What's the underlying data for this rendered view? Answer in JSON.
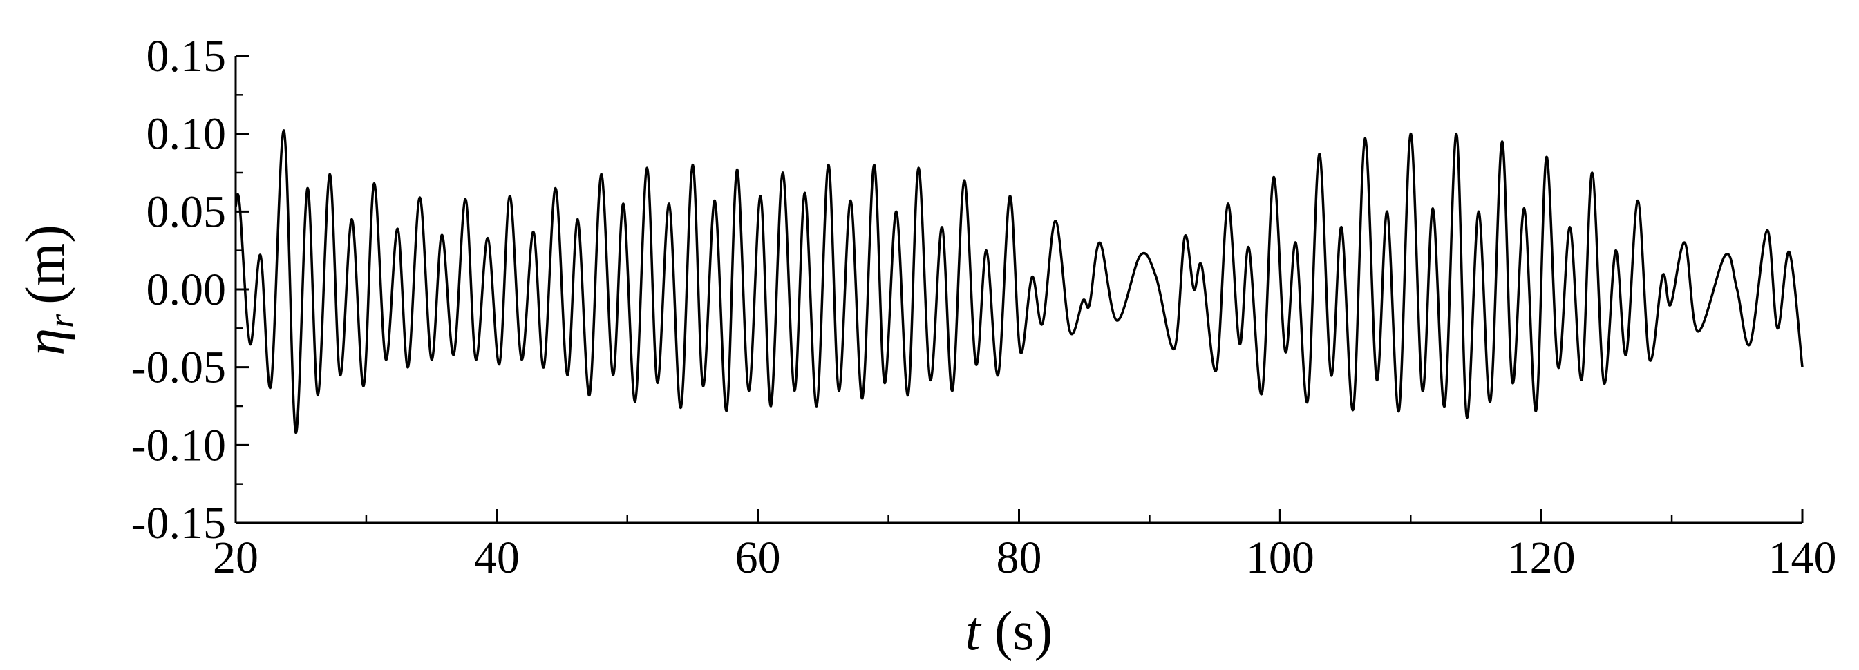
{
  "chart_data": {
    "type": "line",
    "x_label": {
      "symbol": "t",
      "unit": "(s)"
    },
    "y_label": {
      "symbol": "η",
      "subscript": "r",
      "unit": "(m)"
    },
    "xlim": [
      20,
      140
    ],
    "xticks": [
      20,
      40,
      60,
      80,
      100,
      120,
      140
    ],
    "ylim": [
      -0.15,
      0.15
    ],
    "yticks": [
      {
        "value": -0.15,
        "label": "-0.15"
      },
      {
        "value": -0.1,
        "label": "-0.10"
      },
      {
        "value": -0.05,
        "label": "-0.05"
      },
      {
        "value": 0,
        "label": "0.00"
      },
      {
        "value": 0.05,
        "label": "0.05"
      },
      {
        "value": 0.1,
        "label": "0.10"
      },
      {
        "value": 0.15,
        "label": "0.15"
      }
    ],
    "grid": false,
    "x": [
      20,
      20.3,
      21.1,
      21.9,
      22.7,
      23.7,
      24.6,
      25.5,
      26.3,
      27.2,
      28.0,
      28.9,
      29.8,
      30.6,
      31.5,
      32.4,
      33.2,
      34.1,
      35.0,
      35.8,
      36.7,
      37.6,
      38.4,
      39.3,
      40.2,
      41.0,
      41.9,
      42.8,
      43.6,
      44.5,
      45.4,
      46.2,
      47.1,
      48.0,
      48.9,
      49.7,
      50.6,
      51.5,
      52.3,
      53.2,
      54.1,
      55.0,
      55.8,
      56.7,
      57.6,
      58.4,
      59.3,
      60.2,
      61.0,
      61.9,
      62.8,
      63.6,
      64.5,
      65.4,
      66.2,
      67.1,
      68.0,
      68.9,
      69.7,
      70.6,
      71.5,
      72.3,
      73.2,
      74.1,
      74.9,
      75.8,
      76.7,
      77.5,
      78.4,
      79.3,
      80.1,
      81.0,
      81.8,
      82.8,
      83.9,
      84.9,
      85.4,
      86.2,
      87.5,
      89.3,
      90.5,
      91.9,
      92.7,
      93.4,
      94.0,
      95.1,
      96.0,
      96.9,
      97.6,
      98.6,
      99.5,
      100.4,
      101.2,
      102.1,
      103.0,
      103.9,
      104.7,
      105.6,
      106.5,
      107.4,
      108.2,
      109.1,
      110.0,
      110.9,
      111.7,
      112.6,
      113.5,
      114.3,
      115.2,
      116.1,
      117.0,
      117.8,
      118.7,
      119.6,
      120.4,
      121.3,
      122.2,
      123.1,
      123.9,
      124.8,
      125.7,
      126.5,
      127.4,
      128.3,
      129.3,
      129.9,
      131.0,
      132.0,
      134.1,
      135.0,
      136.0,
      137.3,
      138.1,
      139.0,
      140
    ],
    "series": [
      {
        "name": "eta_r",
        "color": "#000000",
        "values": [
          0.053,
          0.055,
          -0.035,
          0.022,
          -0.062,
          0.102,
          -0.092,
          0.065,
          -0.068,
          0.074,
          -0.055,
          0.045,
          -0.062,
          0.068,
          -0.045,
          0.039,
          -0.05,
          0.059,
          -0.045,
          0.035,
          -0.042,
          0.058,
          -0.045,
          0.033,
          -0.048,
          0.06,
          -0.045,
          0.037,
          -0.05,
          0.065,
          -0.055,
          0.045,
          -0.068,
          0.074,
          -0.055,
          0.055,
          -0.072,
          0.078,
          -0.06,
          0.055,
          -0.076,
          0.08,
          -0.062,
          0.057,
          -0.078,
          0.077,
          -0.065,
          0.06,
          -0.075,
          0.075,
          -0.065,
          0.062,
          -0.075,
          0.08,
          -0.065,
          0.057,
          -0.07,
          0.08,
          -0.06,
          0.05,
          -0.068,
          0.078,
          -0.058,
          0.04,
          -0.065,
          0.07,
          -0.048,
          0.025,
          -0.055,
          0.06,
          -0.04,
          0.008,
          -0.022,
          0.044,
          -0.027,
          -0.007,
          -0.01,
          0.03,
          -0.02,
          0.022,
          0.008,
          -0.038,
          0.034,
          0.0,
          0.015,
          -0.052,
          0.055,
          -0.035,
          0.027,
          -0.067,
          0.072,
          -0.04,
          0.03,
          -0.072,
          0.087,
          -0.055,
          0.04,
          -0.077,
          0.097,
          -0.058,
          0.05,
          -0.078,
          0.1,
          -0.065,
          0.052,
          -0.075,
          0.1,
          -0.082,
          0.05,
          -0.072,
          0.095,
          -0.06,
          0.052,
          -0.078,
          0.085,
          -0.05,
          0.04,
          -0.058,
          0.075,
          -0.06,
          0.025,
          -0.042,
          0.057,
          -0.045,
          0.009,
          -0.01,
          0.03,
          -0.027,
          0.022,
          0.0,
          -0.035,
          0.038,
          -0.025,
          0.024,
          -0.05
        ]
      }
    ]
  }
}
